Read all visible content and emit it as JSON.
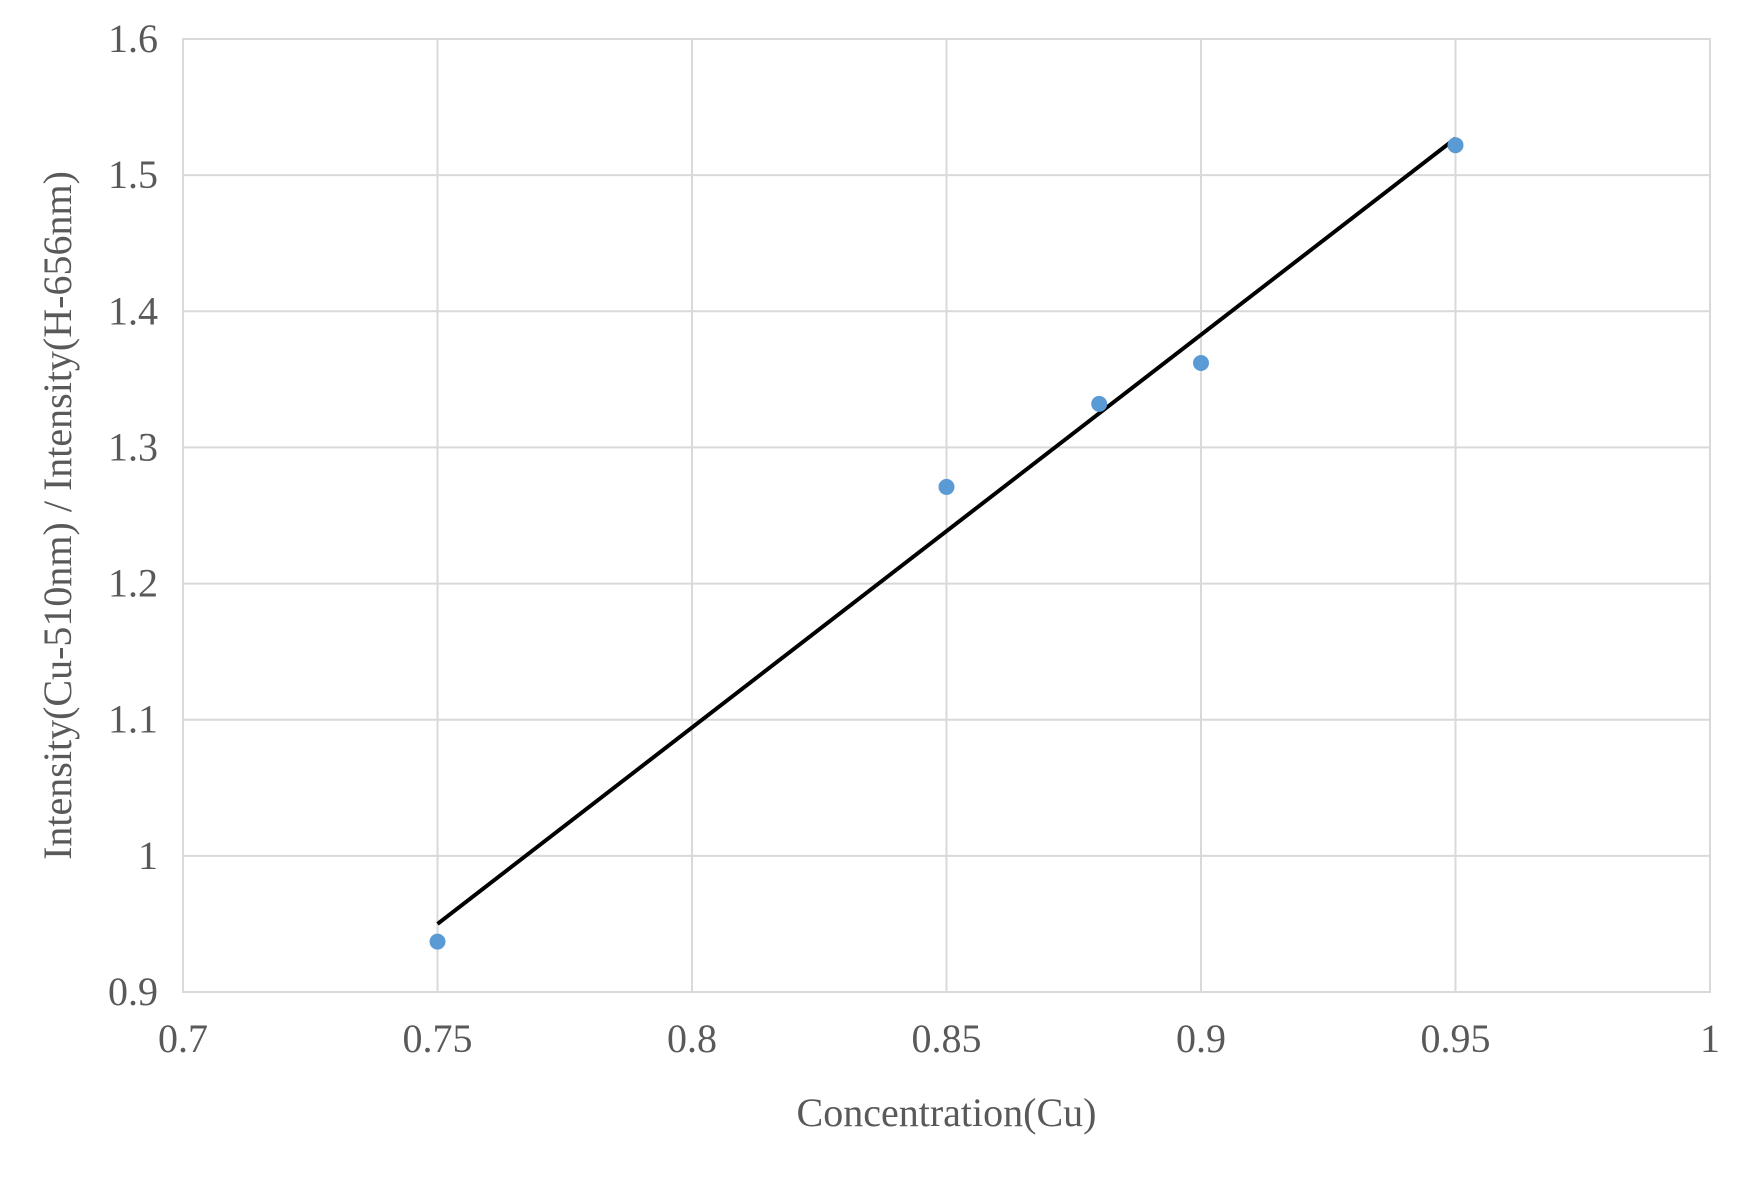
{
  "chart_data": {
    "type": "scatter",
    "title": "",
    "xlabel": "Concentration(Cu)",
    "ylabel": "Intensity(Cu-510nm) / Intensity(H-656nm)",
    "xlim": [
      0.7,
      1.0
    ],
    "ylim": [
      0.9,
      1.6
    ],
    "x_ticks": [
      "0.7",
      "0.75",
      "0.8",
      "0.85",
      "0.9",
      "0.95",
      "1"
    ],
    "y_ticks": [
      "0.9",
      "1",
      "1.1",
      "1.2",
      "1.3",
      "1.4",
      "1.5",
      "1.6"
    ],
    "grid": true,
    "legend": "none",
    "series": [
      {
        "type": "scatter",
        "color": "#5b9bd5",
        "points": [
          {
            "x": 0.75,
            "y": 0.937
          },
          {
            "x": 0.85,
            "y": 1.271
          },
          {
            "x": 0.88,
            "y": 1.332
          },
          {
            "x": 0.9,
            "y": 1.362
          },
          {
            "x": 0.95,
            "y": 1.522
          }
        ]
      },
      {
        "type": "line",
        "color": "#000000",
        "points": [
          {
            "x": 0.75,
            "y": 0.95
          },
          {
            "x": 0.95,
            "y": 1.527
          }
        ]
      }
    ]
  }
}
